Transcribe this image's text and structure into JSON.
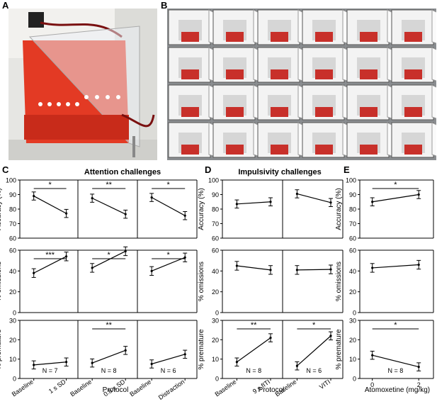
{
  "panels": {
    "A": "A",
    "B": "B",
    "C": "C",
    "D": "D",
    "E": "E"
  },
  "headers": {
    "attention": "Attention challenges",
    "impulsivity": "Impulsivity challenges"
  },
  "ylabels": {
    "accuracy": "Accuracy (%)",
    "omissions": "% omissions",
    "premature": "% premature"
  },
  "yticks": {
    "accuracy": [
      "100",
      "90",
      "80",
      "70",
      "60"
    ],
    "omissions": [
      "60",
      "40",
      "20",
      "0"
    ],
    "premature": [
      "30",
      "20",
      "10",
      "0"
    ]
  },
  "xlabels": {
    "protocol": "Protocol",
    "atomoxetine": "Atomoxetine (mg/kg)"
  },
  "chart_data": [
    {
      "type": "line",
      "panel": "C",
      "challenge": "1 s SD",
      "n_label": "N = 7",
      "categories": [
        "Baseline",
        "1 s SD"
      ],
      "accuracy": {
        "values": [
          89,
          77
        ],
        "sig": "*"
      },
      "omissions": {
        "values": [
          38,
          54
        ],
        "sig": "***"
      },
      "premature": {
        "values": [
          7,
          8.5
        ],
        "sig": ""
      }
    },
    {
      "type": "line",
      "panel": "C",
      "challenge": "0.8 s SD",
      "n_label": "N = 8",
      "categories": [
        "Baseline",
        "0.8 s SD"
      ],
      "accuracy": {
        "values": [
          87.5,
          76.5
        ],
        "sig": "**"
      },
      "omissions": {
        "values": [
          43,
          59
        ],
        "sig": "*"
      },
      "premature": {
        "values": [
          8,
          14.5
        ],
        "sig": "**"
      }
    },
    {
      "type": "line",
      "panel": "C",
      "challenge": "Distraction",
      "n_label": "N = 6",
      "categories": [
        "Baseline",
        "Distraction"
      ],
      "accuracy": {
        "values": [
          88,
          75.5
        ],
        "sig": "*"
      },
      "omissions": {
        "values": [
          40,
          53
        ],
        "sig": "*"
      },
      "premature": {
        "values": [
          7.5,
          12.5
        ],
        "sig": ""
      }
    },
    {
      "type": "line",
      "panel": "D",
      "challenge": "9 s fITI",
      "n_label": "N = 8",
      "categories": [
        "Baseline",
        "9 s fITI"
      ],
      "accuracy": {
        "values": [
          83.5,
          85
        ],
        "sig": ""
      },
      "omissions": {
        "values": [
          45,
          41
        ],
        "sig": ""
      },
      "premature": {
        "values": [
          8.5,
          21
        ],
        "sig": "**"
      }
    },
    {
      "type": "line",
      "panel": "D",
      "challenge": "VITI",
      "n_label": "N = 6",
      "categories": [
        "Baseline",
        "VITI"
      ],
      "accuracy": {
        "values": [
          90.5,
          84.5
        ],
        "sig": ""
      },
      "omissions": {
        "values": [
          41,
          41.5
        ],
        "sig": ""
      },
      "premature": {
        "values": [
          6.5,
          22
        ],
        "sig": "*"
      }
    },
    {
      "type": "line",
      "panel": "E",
      "challenge": "Atomoxetine",
      "n_label": "N = 8",
      "categories": [
        "0",
        "2"
      ],
      "accuracy": {
        "values": [
          85,
          90
        ],
        "sig": "*"
      },
      "omissions": {
        "values": [
          43,
          46
        ],
        "sig": ""
      },
      "premature": {
        "values": [
          12,
          6
        ],
        "sig": "*"
      }
    }
  ]
}
